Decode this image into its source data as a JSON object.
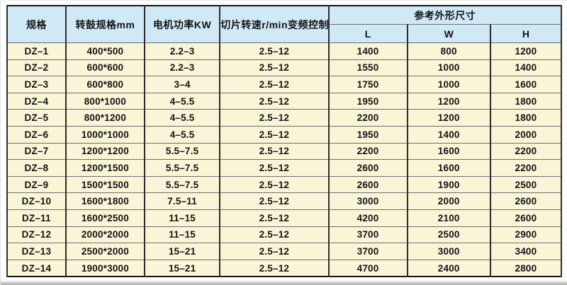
{
  "table": {
    "headers": {
      "spec": "规格",
      "drum": "转鼓规格mm",
      "motor": "电机功率KW",
      "speed": "切片转速r/min变频控制",
      "dims_group": "参考外形尺寸",
      "dim_l": "L",
      "dim_w": "W",
      "dim_h": "H"
    },
    "col_keys": [
      "spec",
      "drum",
      "motor",
      "speed",
      "dim-l",
      "dim-w",
      "dim-h"
    ],
    "rows": [
      [
        "DZ–1",
        "400*500",
        "2.2–3",
        "2.5–12",
        "1400",
        "800",
        "1200"
      ],
      [
        "DZ–2",
        "600*600",
        "2.2–3",
        "2.5–12",
        "1550",
        "1000",
        "1400"
      ],
      [
        "DZ–3",
        "600*800",
        "3–4",
        "2.5–12",
        "1750",
        "1000",
        "1600"
      ],
      [
        "DZ–4",
        "800*1000",
        "4–5.5",
        "2.5–12",
        "1950",
        "1200",
        "1800"
      ],
      [
        "DZ–5",
        "800*1200",
        "4–5.5",
        "2.5–12",
        "2200",
        "1200",
        "1800"
      ],
      [
        "DZ–6",
        "1000*1000",
        "4–5.5",
        "2.5–12",
        "1950",
        "1400",
        "2000"
      ],
      [
        "DZ–7",
        "1200*1200",
        "5.5–7.5",
        "2.5–12",
        "2200",
        "1600",
        "2200"
      ],
      [
        "DZ–8",
        "1200*1500",
        "5.5–7.5",
        "2.5–12",
        "2600",
        "1600",
        "2200"
      ],
      [
        "DZ–9",
        "1500*1500",
        "5.5–7.5",
        "2.5–12",
        "2600",
        "1900",
        "2500"
      ],
      [
        "DZ–10",
        "1600*1800",
        "7.5–11",
        "2.5–12",
        "3000",
        "2000",
        "2600"
      ],
      [
        "DZ–11",
        "1600*2500",
        "11–15",
        "2.5–12",
        "4200",
        "2100",
        "2600"
      ],
      [
        "DZ–12",
        "2000*2000",
        "11–15",
        "2.5–12",
        "3700",
        "2500",
        "2900"
      ],
      [
        "DZ–13",
        "2500*2000",
        "15–21",
        "2.5–12",
        "3700",
        "3000",
        "3400"
      ],
      [
        "DZ–14",
        "1900*3000",
        "15–21",
        "2.5–12",
        "4700",
        "2400",
        "2800"
      ]
    ]
  },
  "colors": {
    "header_bg": "#cfe9f7",
    "row_bg": "#faf5d7",
    "outer_border": "#141414",
    "grid_vertical": "#2d2d2d",
    "grid_horizontal": "#6f6f6f",
    "text": "#141414"
  }
}
